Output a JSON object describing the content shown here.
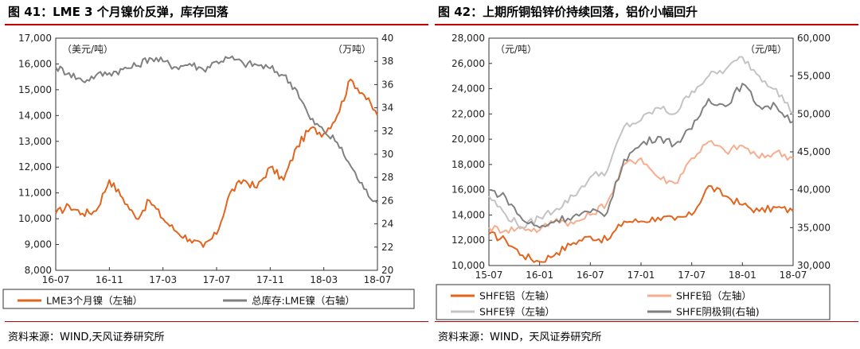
{
  "colors": {
    "accent": "#c00000",
    "lme_nickel": "#e2651e",
    "lme_stock": "#808080",
    "shfe_lead": "#e2651e",
    "shfe_lead_light": "#f6ae8e",
    "shfe_zinc": "#c4c4c4",
    "shfe_copper": "#808080"
  },
  "left": {
    "title": "图 41：LME 3 个月镍价反弹，库存回落",
    "source": "资料来源：WIND,天风证券研究所",
    "chart_data": {
      "type": "line",
      "x_tick_labels": [
        "16-07",
        "16-11",
        "17-03",
        "17-07",
        "17-11",
        "18-03",
        "18-07"
      ],
      "x_range": [
        "2016-07",
        "2018-07"
      ],
      "y_left": {
        "unit": "（美元/吨）",
        "range": [
          8000,
          17000
        ],
        "ticks": [
          "8,000",
          "9,000",
          "10,000",
          "11,000",
          "12,000",
          "13,000",
          "14,000",
          "15,000",
          "16,000",
          "17,000"
        ]
      },
      "y_right": {
        "unit": "（万吨）",
        "range": [
          20,
          40
        ],
        "ticks": [
          "20",
          "22",
          "24",
          "26",
          "28",
          "30",
          "32",
          "34",
          "36",
          "38",
          "40"
        ]
      },
      "grid": false,
      "legend_position": "bottom",
      "series": [
        {
          "name": "LME3个月镍（左轴）",
          "axis": "left",
          "color_key": "lme_nickel",
          "points": [
            [
              "2016-07",
              10200
            ],
            [
              "2016-08",
              10500
            ],
            [
              "2016-09",
              10200
            ],
            [
              "2016-10",
              10300
            ],
            [
              "2016-11",
              11500
            ],
            [
              "2016-12",
              10800
            ],
            [
              "2017-01",
              10000
            ],
            [
              "2017-02",
              10700
            ],
            [
              "2017-03",
              10000
            ],
            [
              "2017-04",
              9500
            ],
            [
              "2017-05",
              9200
            ],
            [
              "2017-06",
              8900
            ],
            [
              "2017-07",
              9400
            ],
            [
              "2017-08",
              11000
            ],
            [
              "2017-09",
              11500
            ],
            [
              "2017-10",
              11200
            ],
            [
              "2017-11",
              12000
            ],
            [
              "2017-12",
              11500
            ],
            [
              "2018-01",
              12800
            ],
            [
              "2018-02",
              13500
            ],
            [
              "2018-03",
              13300
            ],
            [
              "2018-04",
              14000
            ],
            [
              "2018-05",
              15400
            ],
            [
              "2018-06",
              14800
            ],
            [
              "2018-07",
              14000
            ]
          ]
        },
        {
          "name": "总库存:LME镍（右轴）",
          "axis": "right",
          "color_key": "lme_stock",
          "points": [
            [
              "2016-07",
              37.5
            ],
            [
              "2016-08",
              37
            ],
            [
              "2016-09",
              36.3
            ],
            [
              "2016-10",
              36.8
            ],
            [
              "2016-11",
              37
            ],
            [
              "2016-12",
              37.3
            ],
            [
              "2017-01",
              37.6
            ],
            [
              "2017-02",
              38.3
            ],
            [
              "2017-03",
              38
            ],
            [
              "2017-04",
              37.5
            ],
            [
              "2017-05",
              37.8
            ],
            [
              "2017-06",
              37.3
            ],
            [
              "2017-07",
              38
            ],
            [
              "2017-08",
              38.3
            ],
            [
              "2017-09",
              37.8
            ],
            [
              "2017-10",
              37.7
            ],
            [
              "2017-11",
              37.4
            ],
            [
              "2017-12",
              36.8
            ],
            [
              "2018-01",
              35.5
            ],
            [
              "2018-02",
              33
            ],
            [
              "2018-03",
              32
            ],
            [
              "2018-04",
              31
            ],
            [
              "2018-05",
              29
            ],
            [
              "2018-06",
              27
            ],
            [
              "2018-07",
              25.8
            ]
          ]
        }
      ]
    }
  },
  "right": {
    "title": "图 42：上期所铜铅锌价持续回落，铝价小幅回升",
    "source": "资料来源：WIND，天风证券研究所",
    "chart_data": {
      "type": "line",
      "x_tick_labels": [
        "15-07",
        "16-01",
        "16-07",
        "17-01",
        "17-07",
        "18-01",
        "18-07"
      ],
      "x_range": [
        "2015-07",
        "2018-07"
      ],
      "y_left": {
        "unit": "（元/吨）",
        "range": [
          10000,
          28000
        ],
        "ticks": [
          "10,000",
          "12,000",
          "14,000",
          "16,000",
          "18,000",
          "20,000",
          "22,000",
          "24,000",
          "26,000",
          "28,000"
        ]
      },
      "y_right": {
        "unit": "（元/吨）",
        "range": [
          30000,
          60000
        ],
        "ticks": [
          "30,000",
          "35,000",
          "40,000",
          "45,000",
          "50,000",
          "55,000",
          "60,000"
        ]
      },
      "grid": false,
      "legend_position": "bottom",
      "series": [
        {
          "name": "SHFE铝（左轴）",
          "axis": "left",
          "color_key": "shfe_lead",
          "points": [
            [
              "2015-07",
              12500
            ],
            [
              "2015-09",
              12000
            ],
            [
              "2015-11",
              10800
            ],
            [
              "2016-01",
              10300
            ],
            [
              "2016-03",
              11000
            ],
            [
              "2016-05",
              11800
            ],
            [
              "2016-07",
              12300
            ],
            [
              "2016-09",
              12000
            ],
            [
              "2016-11",
              13500
            ],
            [
              "2017-01",
              13500
            ],
            [
              "2017-03",
              13800
            ],
            [
              "2017-05",
              13600
            ],
            [
              "2017-07",
              14000
            ],
            [
              "2017-09",
              16300
            ],
            [
              "2017-11",
              15500
            ],
            [
              "2018-01",
              14800
            ],
            [
              "2018-03",
              14300
            ],
            [
              "2018-05",
              14600
            ],
            [
              "2018-07",
              14300
            ]
          ]
        },
        {
          "name": "SHFE铅（左轴）",
          "axis": "left",
          "color_key": "shfe_lead_light",
          "points": [
            [
              "2015-07",
              13000
            ],
            [
              "2015-09",
              12800
            ],
            [
              "2015-11",
              13000
            ],
            [
              "2016-01",
              12800
            ],
            [
              "2016-03",
              13700
            ],
            [
              "2016-05",
              13300
            ],
            [
              "2016-07",
              14000
            ],
            [
              "2016-09",
              15000
            ],
            [
              "2016-11",
              18000
            ],
            [
              "2017-01",
              18500
            ],
            [
              "2017-03",
              17000
            ],
            [
              "2017-05",
              16500
            ],
            [
              "2017-07",
              18500
            ],
            [
              "2017-09",
              19800
            ],
            [
              "2017-11",
              19000
            ],
            [
              "2018-01",
              19500
            ],
            [
              "2018-03",
              18500
            ],
            [
              "2018-05",
              19000
            ],
            [
              "2018-07",
              18500
            ]
          ]
        },
        {
          "name": "SHFE锌（左轴）",
          "axis": "left",
          "color_key": "shfe_zinc",
          "points": [
            [
              "2015-07",
              15500
            ],
            [
              "2015-09",
              14000
            ],
            [
              "2015-11",
              13000
            ],
            [
              "2016-01",
              13800
            ],
            [
              "2016-03",
              14500
            ],
            [
              "2016-05",
              15500
            ],
            [
              "2016-07",
              17000
            ],
            [
              "2016-09",
              17500
            ],
            [
              "2016-11",
              21000
            ],
            [
              "2017-01",
              21500
            ],
            [
              "2017-03",
              22500
            ],
            [
              "2017-05",
              22000
            ],
            [
              "2017-07",
              23800
            ],
            [
              "2017-09",
              25000
            ],
            [
              "2017-11",
              25500
            ],
            [
              "2018-01",
              26500
            ],
            [
              "2018-03",
              25000
            ],
            [
              "2018-05",
              24000
            ],
            [
              "2018-07",
              22000
            ]
          ]
        },
        {
          "name": "SHFE阴极铜(右轴)",
          "axis": "right",
          "color_key": "shfe_copper",
          "points": [
            [
              "2015-07",
              40000
            ],
            [
              "2015-09",
              39000
            ],
            [
              "2015-11",
              36000
            ],
            [
              "2016-01",
              35000
            ],
            [
              "2016-03",
              36000
            ],
            [
              "2016-05",
              36500
            ],
            [
              "2016-07",
              37000
            ],
            [
              "2016-09",
              37000
            ],
            [
              "2016-11",
              44000
            ],
            [
              "2017-01",
              46000
            ],
            [
              "2017-03",
              47000
            ],
            [
              "2017-05",
              46000
            ],
            [
              "2017-07",
              48000
            ],
            [
              "2017-09",
              52000
            ],
            [
              "2017-11",
              51000
            ],
            [
              "2018-01",
              54000
            ],
            [
              "2018-03",
              51000
            ],
            [
              "2018-05",
              51000
            ],
            [
              "2018-07",
              49000
            ]
          ]
        }
      ]
    }
  }
}
